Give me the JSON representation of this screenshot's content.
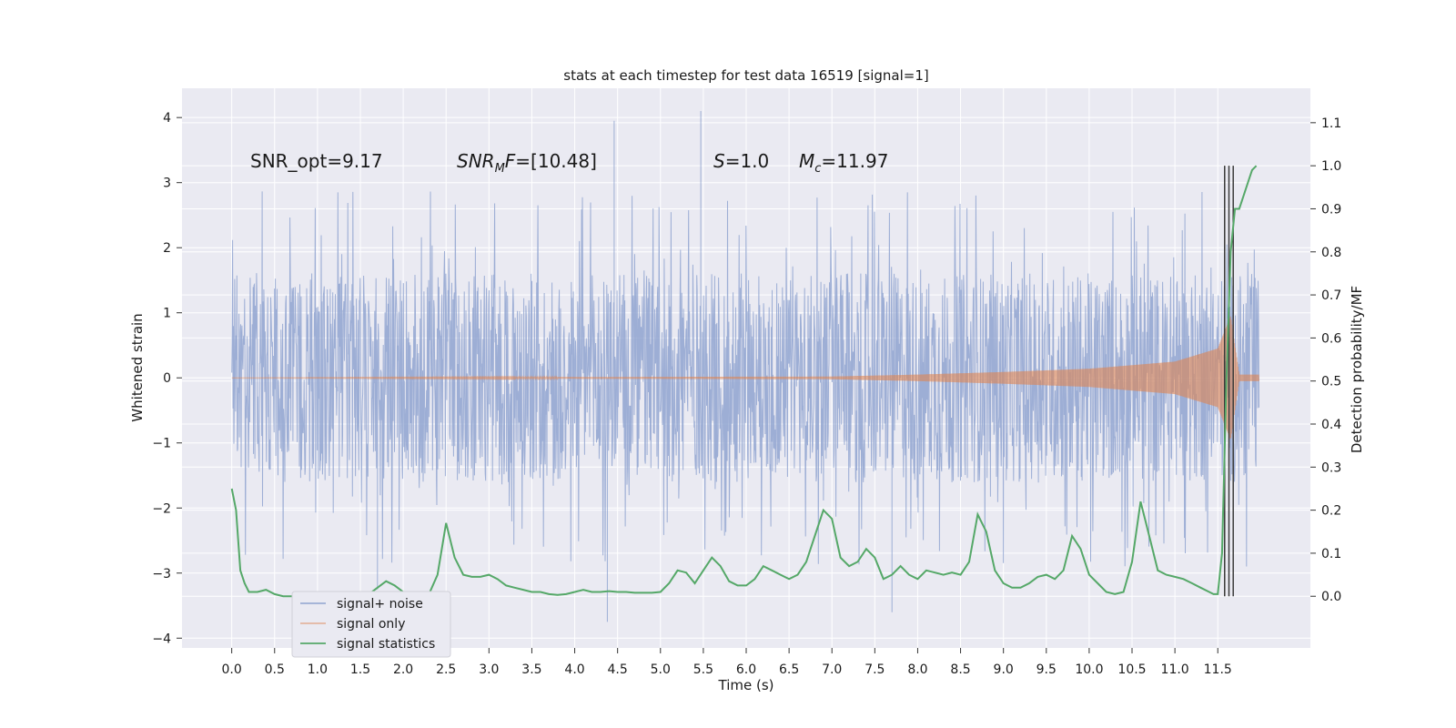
{
  "chart_data": {
    "type": "line",
    "title": "stats at each timestep for test data 16519 [signal=1]",
    "xlabel": "Time (s)",
    "ylabel": "Whitened strain",
    "y2label": "Detection probability/MF",
    "xlim": [
      -0.58,
      12.58
    ],
    "ylim": [
      -4.15,
      4.45
    ],
    "y2lim": [
      -0.12,
      1.18
    ],
    "grid": true,
    "legend_position": "lower-left",
    "x_ticks": [
      "0.0",
      "0.5",
      "1.0",
      "1.5",
      "2.0",
      "2.5",
      "3.0",
      "3.5",
      "4.0",
      "4.5",
      "5.0",
      "5.5",
      "6.0",
      "6.5",
      "7.0",
      "7.5",
      "8.0",
      "8.5",
      "9.0",
      "9.5",
      "10.0",
      "10.5",
      "11.0",
      "11.5"
    ],
    "y_ticks": [
      "4",
      "3",
      "2",
      "1",
      "0",
      "−1",
      "−2",
      "−3",
      "−4"
    ],
    "y2_ticks": [
      "1.1",
      "1.0",
      "0.9",
      "0.8",
      "0.7",
      "0.6",
      "0.5",
      "0.4",
      "0.3",
      "0.2",
      "0.1",
      "0.0"
    ],
    "annotations": {
      "snr_opt": "SNR_opt=9.17",
      "snr_mf_main": "SNR",
      "snr_mf_sub": "M",
      "snr_mf_rest": "F",
      "snr_mf_value": "=[10.48]",
      "s_sym": "S",
      "s_value": "=1.0",
      "mc_sym": "M",
      "mc_sub": "c",
      "mc_value": "=11.97"
    },
    "vertical_markers_x": [
      11.58,
      11.63,
      11.68
    ],
    "series": [
      {
        "name": "signal+ noise",
        "color": "#8fa3d0",
        "x_range": [
          0.0,
          11.98
        ],
        "envelope_abs_typical": 1.4,
        "envelope_extreme_max": 4.1,
        "envelope_extreme_min": -3.8
      },
      {
        "name": "signal only",
        "color": "#dd8452",
        "x_range": [
          0.0,
          11.98
        ],
        "amplitude_at": [
          [
            0.0,
            0.0
          ],
          [
            7.0,
            0.02
          ],
          [
            8.0,
            0.05
          ],
          [
            9.0,
            0.09
          ],
          [
            10.0,
            0.14
          ],
          [
            11.0,
            0.25
          ],
          [
            11.5,
            0.45
          ],
          [
            11.65,
            0.95
          ],
          [
            11.75,
            0.05
          ]
        ]
      },
      {
        "name": "signal statistics",
        "color": "#55a868",
        "axis": "right",
        "x": [
          0.0,
          0.05,
          0.1,
          0.15,
          0.2,
          0.3,
          0.4,
          0.5,
          0.6,
          0.7,
          0.8,
          0.9,
          1.0,
          1.2,
          1.4,
          1.6,
          1.7,
          1.8,
          1.9,
          2.0,
          2.1,
          2.2,
          2.3,
          2.4,
          2.5,
          2.6,
          2.7,
          2.8,
          2.9,
          3.0,
          3.1,
          3.2,
          3.3,
          3.4,
          3.5,
          3.6,
          3.7,
          3.8,
          3.9,
          4.0,
          4.1,
          4.2,
          4.3,
          4.4,
          4.5,
          4.6,
          4.7,
          4.8,
          4.9,
          5.0,
          5.1,
          5.2,
          5.3,
          5.4,
          5.5,
          5.6,
          5.7,
          5.8,
          5.9,
          6.0,
          6.1,
          6.2,
          6.3,
          6.4,
          6.5,
          6.6,
          6.7,
          6.8,
          6.9,
          7.0,
          7.1,
          7.2,
          7.3,
          7.4,
          7.5,
          7.6,
          7.7,
          7.8,
          7.9,
          8.0,
          8.1,
          8.2,
          8.3,
          8.4,
          8.5,
          8.6,
          8.7,
          8.8,
          8.9,
          9.0,
          9.1,
          9.2,
          9.3,
          9.4,
          9.5,
          9.6,
          9.7,
          9.8,
          9.9,
          10.0,
          10.1,
          10.2,
          10.3,
          10.4,
          10.5,
          10.6,
          10.7,
          10.8,
          10.9,
          11.0,
          11.1,
          11.2,
          11.3,
          11.4,
          11.45,
          11.5,
          11.55,
          11.6,
          11.65,
          11.7,
          11.75,
          11.8,
          11.85,
          11.9,
          11.95
        ],
        "values": [
          0.25,
          0.2,
          0.06,
          0.03,
          0.01,
          0.01,
          0.015,
          0.005,
          0.0,
          0.0,
          0.0,
          0.003,
          0.002,
          0.003,
          0.004,
          0.005,
          0.02,
          0.035,
          0.025,
          0.01,
          0.005,
          0.003,
          0.005,
          0.05,
          0.17,
          0.09,
          0.05,
          0.045,
          0.045,
          0.05,
          0.04,
          0.025,
          0.02,
          0.015,
          0.01,
          0.01,
          0.005,
          0.003,
          0.005,
          0.01,
          0.015,
          0.01,
          0.01,
          0.012,
          0.01,
          0.01,
          0.008,
          0.008,
          0.008,
          0.01,
          0.03,
          0.06,
          0.055,
          0.03,
          0.06,
          0.09,
          0.07,
          0.035,
          0.025,
          0.025,
          0.04,
          0.07,
          0.06,
          0.05,
          0.04,
          0.05,
          0.08,
          0.14,
          0.2,
          0.18,
          0.09,
          0.07,
          0.08,
          0.11,
          0.09,
          0.04,
          0.05,
          0.07,
          0.05,
          0.04,
          0.06,
          0.055,
          0.05,
          0.055,
          0.05,
          0.08,
          0.19,
          0.15,
          0.06,
          0.03,
          0.02,
          0.02,
          0.03,
          0.045,
          0.05,
          0.04,
          0.06,
          0.14,
          0.11,
          0.05,
          0.03,
          0.01,
          0.005,
          0.01,
          0.08,
          0.22,
          0.14,
          0.06,
          0.05,
          0.045,
          0.04,
          0.03,
          0.02,
          0.01,
          0.005,
          0.005,
          0.1,
          0.5,
          0.8,
          0.9,
          0.9,
          0.93,
          0.96,
          0.99,
          1.0
        ]
      }
    ]
  }
}
